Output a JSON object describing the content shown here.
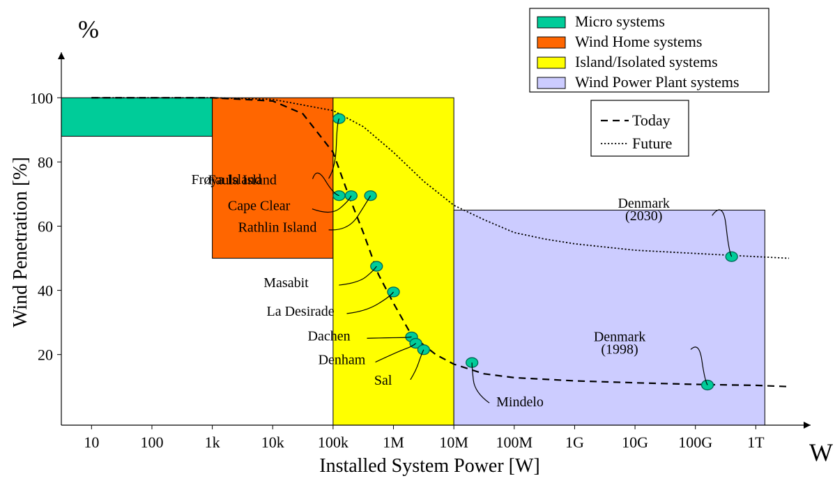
{
  "chart_data": {
    "type": "scatter",
    "title": "",
    "xlabel": "Installed System Power [W]",
    "ylabel": "Wind Penetration [%]",
    "x_unit": "W",
    "y_unit": "%",
    "x_scale": "log10",
    "xlim_log10": [
      0.5,
      12.7
    ],
    "ylim": [
      -2,
      112
    ],
    "x_ticks": [
      {
        "log10": 1,
        "label": "10"
      },
      {
        "log10": 2,
        "label": "100"
      },
      {
        "log10": 3,
        "label": "1k"
      },
      {
        "log10": 4,
        "label": "10k"
      },
      {
        "log10": 5,
        "label": "100k"
      },
      {
        "log10": 6,
        "label": "1M"
      },
      {
        "log10": 7,
        "label": "10M"
      },
      {
        "log10": 8,
        "label": "100M"
      },
      {
        "log10": 9,
        "label": "1G"
      },
      {
        "log10": 10,
        "label": "10G"
      },
      {
        "log10": 11,
        "label": "100G"
      },
      {
        "log10": 12,
        "label": "1T"
      }
    ],
    "y_ticks": [
      {
        "value": 20,
        "label": "20"
      },
      {
        "value": 40,
        "label": "40"
      },
      {
        "value": 60,
        "label": "60"
      },
      {
        "value": 80,
        "label": "80"
      },
      {
        "value": 100,
        "label": "100"
      }
    ],
    "regions": [
      {
        "name": "Micro systems",
        "color": "#00cc99",
        "x_log10": [
          0.5,
          3
        ],
        "y": [
          88,
          100
        ]
      },
      {
        "name": "Wind Home systems",
        "color": "#ff6600",
        "x_log10": [
          3,
          5
        ],
        "y": [
          50,
          100
        ]
      },
      {
        "name": "Island/Isolated systems",
        "color": "#ffff00",
        "x_log10": [
          5,
          7
        ],
        "y": [
          -2,
          100
        ]
      },
      {
        "name": "Wind Power Plant systems",
        "color": "#ccccff",
        "x_log10": [
          7,
          12.15
        ],
        "y": [
          -2,
          65
        ]
      }
    ],
    "curves": [
      {
        "name": "Today",
        "style": "dashed",
        "points": [
          [
            1.0,
            100
          ],
          [
            3.0,
            100
          ],
          [
            4.0,
            99
          ],
          [
            4.5,
            95
          ],
          [
            5.0,
            83
          ],
          [
            5.25,
            70
          ],
          [
            5.5,
            58
          ],
          [
            5.75,
            45
          ],
          [
            6.0,
            36
          ],
          [
            6.3,
            26
          ],
          [
            6.7,
            20
          ],
          [
            7.0,
            17
          ],
          [
            7.5,
            14
          ],
          [
            8.0,
            12.8
          ],
          [
            9.0,
            11.8
          ],
          [
            10.0,
            11.2
          ],
          [
            11.0,
            10.7
          ],
          [
            12.0,
            10.4
          ],
          [
            12.55,
            10
          ]
        ]
      },
      {
        "name": "Future",
        "style": "dotted",
        "points": [
          [
            1.0,
            100
          ],
          [
            3.0,
            100
          ],
          [
            4.0,
            99.5
          ],
          [
            5.0,
            96
          ],
          [
            5.5,
            91
          ],
          [
            6.0,
            83
          ],
          [
            6.5,
            74
          ],
          [
            7.0,
            66.5
          ],
          [
            7.5,
            62
          ],
          [
            8.0,
            58
          ],
          [
            8.5,
            56
          ],
          [
            9.0,
            54.5
          ],
          [
            10.0,
            52.5
          ],
          [
            11.0,
            51.5
          ],
          [
            12.0,
            50.5
          ],
          [
            12.55,
            50
          ]
        ]
      }
    ],
    "points": [
      {
        "label": "Frøya Island",
        "x_log10": 5.1,
        "y": 93.5
      },
      {
        "label": "Faula Island",
        "x_log10": 5.1,
        "y": 69.5
      },
      {
        "label": "Cape Clear",
        "x_log10": 5.3,
        "y": 69.5
      },
      {
        "label": "Rathlin Island",
        "x_log10": 5.62,
        "y": 69.5
      },
      {
        "label": "Masabit",
        "x_log10": 5.72,
        "y": 47.5
      },
      {
        "label": "La Desirade",
        "x_log10": 6.0,
        "y": 39.5
      },
      {
        "label": "Dachen",
        "x_log10": 6.3,
        "y": 25.5
      },
      {
        "label": "Denham",
        "x_log10": 6.37,
        "y": 23.5
      },
      {
        "label": "Sal",
        "x_log10": 6.5,
        "y": 21.5
      },
      {
        "label": "Mindelo",
        "x_log10": 7.3,
        "y": 17.5
      },
      {
        "label": "Denmark (1998)",
        "x_log10": 11.2,
        "y": 10.5
      },
      {
        "label": "Denmark (2030)",
        "x_log10": 11.6,
        "y": 50.5
      }
    ],
    "point_labels": [
      {
        "point": "Frøya Island",
        "lines": [
          "Frøya Island"
        ]
      },
      {
        "point": "Faula Island",
        "lines": [
          "Faula Island"
        ]
      },
      {
        "point": "Cape Clear",
        "lines": [
          "Cape Clear"
        ]
      },
      {
        "point": "Rathlin Island",
        "lines": [
          "Rathlin Island"
        ]
      },
      {
        "point": "Masabit",
        "lines": [
          "Masabit"
        ]
      },
      {
        "point": "La Desirade",
        "lines": [
          "La Desirade"
        ]
      },
      {
        "point": "Dachen",
        "lines": [
          "Dachen"
        ]
      },
      {
        "point": "Denham",
        "lines": [
          "Denham"
        ]
      },
      {
        "point": "Sal",
        "lines": [
          "Sal"
        ]
      },
      {
        "point": "Mindelo",
        "lines": [
          "Mindelo"
        ]
      },
      {
        "point": "Denmark (1998)",
        "lines": [
          "Denmark",
          "(1998)"
        ]
      },
      {
        "point": "Denmark (2030)",
        "lines": [
          "Denmark",
          "(2030)"
        ]
      }
    ],
    "legend_regions": [
      "Micro systems",
      "Wind Home systems",
      "Island/Isolated systems",
      "Wind Power Plant systems"
    ],
    "legend_lines": [
      "Today",
      "Future"
    ],
    "legend_placement": "top-right",
    "grid": false
  },
  "colors": {
    "axis": "#000000",
    "point_fill": "#00cc99",
    "point_stroke": "#006655",
    "legend_border": "#000000"
  }
}
